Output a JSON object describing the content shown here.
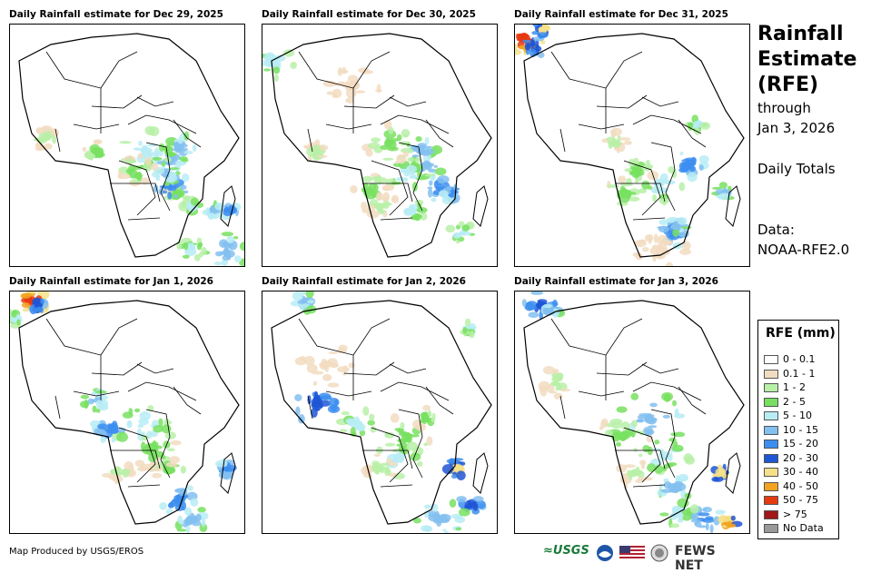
{
  "panels": [
    {
      "title": "Daily Rainfall estimate for Dec 29, 2025",
      "rain": "p0"
    },
    {
      "title": "Daily Rainfall estimate for Dec 30, 2025",
      "rain": "p1"
    },
    {
      "title": "Daily Rainfall estimate for Dec 31, 2025",
      "rain": "p2"
    },
    {
      "title": "Daily Rainfall estimate for Jan 1, 2026",
      "rain": "p3"
    },
    {
      "title": "Daily Rainfall estimate for Jan 2, 2026",
      "rain": "p4"
    },
    {
      "title": "Daily Rainfall estimate for Jan 3, 2026",
      "rain": "p5"
    }
  ],
  "side": {
    "title_lines": [
      "Rainfall",
      "Estimate",
      "(RFE)"
    ],
    "through": "through",
    "date": "Jan 3, 2026",
    "totals": "Daily Totals",
    "data_label": "Data:",
    "data_source": "NOAA-RFE2.0"
  },
  "legend": {
    "title": "RFE (mm)",
    "items": [
      {
        "label": "0 - 0.1",
        "color": "#ffffff"
      },
      {
        "label": "0.1 - 1",
        "color": "#f2dcc1"
      },
      {
        "label": "1 - 2",
        "color": "#b8f0a8"
      },
      {
        "label": "2 - 5",
        "color": "#78e060"
      },
      {
        "label": "5 - 10",
        "color": "#b8ecf5"
      },
      {
        "label": "10 - 15",
        "color": "#82c0f0"
      },
      {
        "label": "15 - 20",
        "color": "#3c8ef0"
      },
      {
        "label": "20 - 30",
        "color": "#1f56d6"
      },
      {
        "label": "30 - 40",
        "color": "#f5e08a"
      },
      {
        "label": "40 - 50",
        "color": "#f2a420"
      },
      {
        "label": "50 - 75",
        "color": "#e63a10"
      },
      {
        "label": "> 75",
        "color": "#a01818"
      },
      {
        "label": "No Data",
        "color": "#9a9a9a"
      }
    ]
  },
  "footer": {
    "credit": "Map Produced by USGS/EROS",
    "usgs": "≈USGS",
    "fews": "FEWS NET"
  }
}
